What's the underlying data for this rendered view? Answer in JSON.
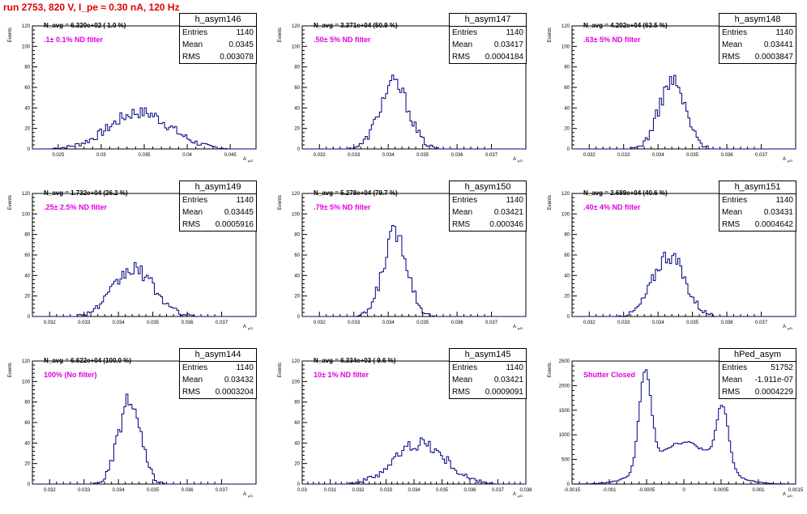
{
  "header": {
    "run_label": "run 2753,   820 V, I_pe ≈ 0.30 nA, 120 Hz"
  },
  "common": {
    "y_axis_label": "Events",
    "x_axis_label": "A",
    "x_axis_sub": "μ/D",
    "stat_labels": [
      "Entries",
      "Mean",
      "RMS"
    ]
  },
  "colors": {
    "hist_line": "#00007f",
    "header": "#e00000",
    "filter_text": "#e000e0"
  },
  "chart_data": [
    {
      "type": "bar",
      "name": "h_asym146",
      "n_avg": "N_avg = 6.320e+02 ( 1.0 %)",
      "filter": ".1± 0.1% ND filter",
      "stats": {
        "entries": "1140",
        "mean": "0.0345",
        "rms": "0.003078"
      },
      "xlim": [
        0.022,
        0.048
      ],
      "ylim": [
        0,
        120
      ],
      "xticks": [
        "0.025",
        "0.03",
        "0.035",
        "0.04",
        "0.045"
      ],
      "yticks": [
        "0",
        "20",
        "40",
        "60",
        "80",
        "100",
        "120"
      ],
      "peaks": [
        [
          0.0345,
          36,
          0.0035
        ]
      ],
      "peak_max": 40
    },
    {
      "type": "bar",
      "name": "h_asym147",
      "n_avg": "N_avg = 3.371e+04 (50.9 %)",
      "filter": ".50± 5% ND filter",
      "stats": {
        "entries": "1140",
        "mean": "0.03417",
        "rms": "0.0004184"
      },
      "xlim": [
        0.0315,
        0.038
      ],
      "ylim": [
        0,
        120
      ],
      "xticks": [
        "0.032",
        "0.033",
        "0.034",
        "0.035",
        "0.036",
        "0.037"
      ],
      "yticks": [
        "0",
        "20",
        "40",
        "60",
        "80",
        "100",
        "120"
      ],
      "peaks": [
        [
          0.03417,
          64,
          0.00042
        ]
      ],
      "peak_max": 72
    },
    {
      "type": "bar",
      "name": "h_asym148",
      "n_avg": "N_avg = 4.202e+04 (63.5 %)",
      "filter": ".63± 5% ND filter",
      "stats": {
        "entries": "1140",
        "mean": "0.03441",
        "rms": "0.0003847"
      },
      "xlim": [
        0.0315,
        0.038
      ],
      "ylim": [
        0,
        120
      ],
      "xticks": [
        "0.032",
        "0.033",
        "0.034",
        "0.035",
        "0.036",
        "0.037"
      ],
      "yticks": [
        "0",
        "20",
        "40",
        "60",
        "80",
        "100",
        "120"
      ],
      "peaks": [
        [
          0.03441,
          66,
          0.00038
        ]
      ],
      "peak_max": 74
    },
    {
      "type": "bar",
      "name": "h_asym149",
      "n_avg": "N_avg = 1.732e+04 (26.2 %)",
      "filter": ".25± 2.5% ND filter",
      "stats": {
        "entries": "1140",
        "mean": "0.03445",
        "rms": "0.0005916"
      },
      "xlim": [
        0.0315,
        0.038
      ],
      "ylim": [
        0,
        120
      ],
      "xticks": [
        "0.032",
        "0.033",
        "0.034",
        "0.035",
        "0.036",
        "0.037"
      ],
      "yticks": [
        "0",
        "20",
        "40",
        "60",
        "80",
        "100",
        "120"
      ],
      "peaks": [
        [
          0.03445,
          46,
          0.00059
        ]
      ],
      "peak_max": 56
    },
    {
      "type": "bar",
      "name": "h_asym150",
      "n_avg": "N_avg = 5.278e+04 (79.7 %)",
      "filter": ".79± 5% ND filter",
      "stats": {
        "entries": "1140",
        "mean": "0.03421",
        "rms": "0.000346"
      },
      "xlim": [
        0.0315,
        0.038
      ],
      "ylim": [
        0,
        120
      ],
      "xticks": [
        "0.032",
        "0.033",
        "0.034",
        "0.035",
        "0.036",
        "0.037"
      ],
      "yticks": [
        "0",
        "20",
        "40",
        "60",
        "80",
        "100",
        "120"
      ],
      "peaks": [
        [
          0.03421,
          82,
          0.00035
        ]
      ],
      "peak_max": 91
    },
    {
      "type": "bar",
      "name": "h_asym151",
      "n_avg": "N_avg = 2.689e+04 (40.6 %)",
      "filter": ".40± 4% ND filter",
      "stats": {
        "entries": "1140",
        "mean": "0.03431",
        "rms": "0.0004642"
      },
      "xlim": [
        0.0315,
        0.038
      ],
      "ylim": [
        0,
        120
      ],
      "xticks": [
        "0.032",
        "0.033",
        "0.034",
        "0.035",
        "0.036",
        "0.037"
      ],
      "yticks": [
        "0",
        "20",
        "40",
        "60",
        "80",
        "100",
        "120"
      ],
      "peaks": [
        [
          0.03431,
          60,
          0.00046
        ]
      ],
      "peak_max": 70
    },
    {
      "type": "bar",
      "name": "h_asym144",
      "n_avg": "N_avg = 6.622e+04 (100.0 %)",
      "filter": "100% (No filter)",
      "stats": {
        "entries": "1140",
        "mean": "0.03432",
        "rms": "0.0003204"
      },
      "xlim": [
        0.0315,
        0.038
      ],
      "ylim": [
        0,
        120
      ],
      "xticks": [
        "0.032",
        "0.033",
        "0.034",
        "0.035",
        "0.036",
        "0.037"
      ],
      "yticks": [
        "0",
        "20",
        "40",
        "60",
        "80",
        "100",
        "120"
      ],
      "peaks": [
        [
          0.03432,
          80,
          0.00032
        ]
      ],
      "peak_max": 88
    },
    {
      "type": "bar",
      "name": "h_asym145",
      "n_avg": "N_avg = 6.334e+03 ( 9.6 %)",
      "filter": "10± 1% ND filter",
      "stats": {
        "entries": "1140",
        "mean": "0.03421",
        "rms": "0.0009091"
      },
      "xlim": [
        0.03,
        0.038
      ],
      "ylim": [
        0,
        120
      ],
      "xticks": [
        "0.03",
        "0.031",
        "0.032",
        "0.033",
        "0.034",
        "0.035",
        "0.036",
        "0.037",
        "0.038"
      ],
      "yticks": [
        "0",
        "20",
        "40",
        "60",
        "80",
        "100",
        "120"
      ],
      "peaks": [
        [
          0.03421,
          40,
          0.0009
        ]
      ],
      "peak_max": 49
    },
    {
      "type": "bar",
      "name": "hPed_asym",
      "n_avg": "",
      "filter": "Shutter Closed",
      "stats": {
        "entries": "51752",
        "mean": "-1.911e-07",
        "rms": "0.0004229"
      },
      "xlim": [
        -0.0015,
        0.0015
      ],
      "ylim": [
        0,
        2500
      ],
      "xticks": [
        "-0.0015",
        "-0.001",
        "-0.0005",
        "0",
        "0.0005",
        "0.001",
        "0.0015"
      ],
      "yticks": [
        "0",
        "500",
        "1000",
        "1500",
        "2000",
        "2500"
      ],
      "peaks": [
        [
          -0.00052,
          1950,
          8e-05
        ],
        [
          0.00052,
          1250,
          8e-05
        ],
        [
          0.0,
          850,
          0.0004
        ]
      ],
      "peak_max": 2450
    }
  ]
}
